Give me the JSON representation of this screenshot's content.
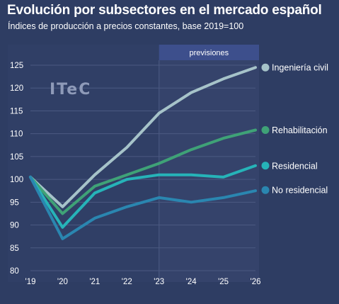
{
  "header": {
    "title": "Evolución por subsectores en el mercado español",
    "subtitle": "Índices de producción a precios constantes, base 2019=100"
  },
  "logo_text": "ITeC",
  "colors": {
    "background": "#2e3d63",
    "plot_background": "#303f66",
    "forecast_background": "#35436b",
    "forecast_header": "#3d4f8c",
    "grid": "#4b5a82"
  },
  "chart_data": {
    "type": "line",
    "title": "Evolución por subsectores en el mercado español",
    "subtitle": "Índices de producción a precios constantes, base 2019=100",
    "xlabel": "",
    "ylabel": "",
    "categories": [
      "'19",
      "'20",
      "'21",
      "'22",
      "'23",
      "'24",
      "'25",
      "'26"
    ],
    "ylim": [
      80,
      125
    ],
    "yticks": [
      80,
      85,
      90,
      95,
      100,
      105,
      110,
      115,
      120,
      125
    ],
    "grid": true,
    "forecast": {
      "label": "previsiones",
      "from": "'23",
      "to": "'26"
    },
    "series": [
      {
        "name": "Ingeniería civil",
        "color": "#a6c3c9",
        "values": [
          100.5,
          94.0,
          101.0,
          107.0,
          114.5,
          119.0,
          122.0,
          124.5
        ]
      },
      {
        "name": "Rehabilitación",
        "color": "#3fa277",
        "values": [
          100.5,
          92.5,
          98.5,
          101.0,
          103.5,
          106.5,
          109.0,
          110.8
        ]
      },
      {
        "name": "Residencial",
        "color": "#26b3b8",
        "values": [
          100.5,
          89.5,
          97.0,
          100.0,
          101.0,
          101.0,
          100.5,
          103.0
        ]
      },
      {
        "name": "No residencial",
        "color": "#2a86b0",
        "values": [
          100.5,
          87.0,
          91.5,
          94.0,
          96.0,
          95.0,
          96.0,
          97.5
        ]
      }
    ]
  }
}
